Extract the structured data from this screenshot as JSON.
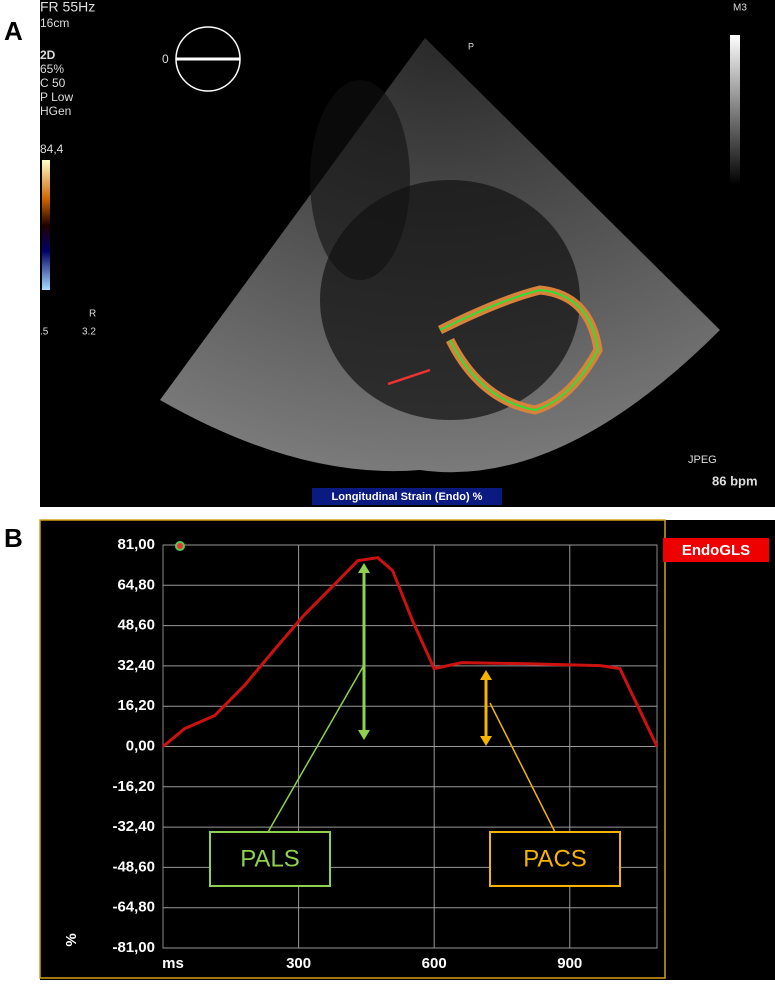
{
  "panels": {
    "a": "A",
    "b": "B"
  },
  "echo": {
    "fr": "FR 55Hz",
    "depth": "16cm",
    "mode": "2D",
    "gain": "65%",
    "c": "C 50",
    "p": "P Low",
    "gen": "HGen",
    "scale_max": "84,4",
    "angle": "0",
    "m": "M3",
    "probe": "P",
    "pos_l": ".5",
    "pos_r": "3.2",
    "r": "R",
    "fmt": "JPEG",
    "hr": "86 bpm",
    "label": "Longitudinal Strain (Endo) %"
  },
  "chart_data": {
    "type": "line",
    "x": [
      0,
      48,
      114,
      180,
      245,
      311,
      377,
      431,
      475,
      508,
      552,
      600,
      661,
      793,
      968,
      1011,
      1055,
      1093
    ],
    "series": [
      {
        "name": "EndoGLS",
        "color": "#cc1111",
        "values": [
          0,
          7.2,
          12.4,
          24.5,
          38.6,
          52.6,
          64.7,
          74.7,
          75.9,
          70.7,
          50.6,
          31.3,
          33.7,
          33.3,
          32.5,
          31.3,
          14.5,
          0
        ]
      }
    ],
    "xlim": [
      0,
      1093
    ],
    "xticks": [
      300,
      600,
      900
    ],
    "x_label": "ms",
    "y_label": "%",
    "ylim": [
      -81,
      81
    ],
    "yticks": [
      {
        "value": 81,
        "label": "81,00"
      },
      {
        "value": 64.8,
        "label": "64,80"
      },
      {
        "value": 48.6,
        "label": "48,60"
      },
      {
        "value": 32.4,
        "label": "32,40"
      },
      {
        "value": 16.2,
        "label": "16,20"
      },
      {
        "value": 0,
        "label": "0,00"
      },
      {
        "value": -16.2,
        "label": "-16,20"
      },
      {
        "value": -32.4,
        "label": "-32,40"
      },
      {
        "value": -48.6,
        "label": "-48,60"
      },
      {
        "value": -64.8,
        "label": "-64,80"
      },
      {
        "value": -81,
        "label": "-81,00"
      }
    ],
    "grid": true,
    "annotations": [
      {
        "text": "PALS",
        "color": "#8fd14f"
      },
      {
        "text": "PACS",
        "color": "#f5b400"
      }
    ]
  }
}
